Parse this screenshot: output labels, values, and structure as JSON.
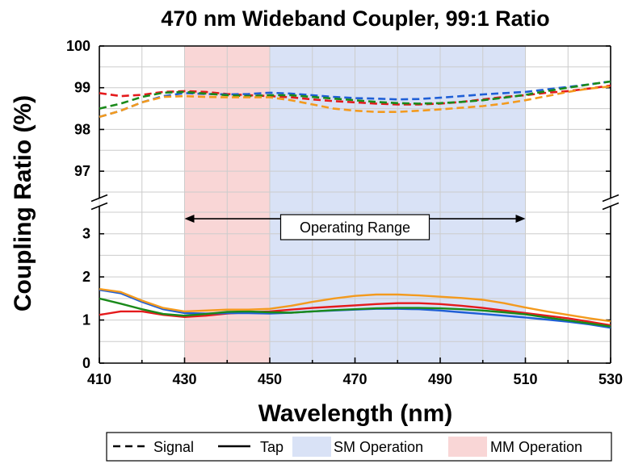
{
  "chart_data": {
    "type": "line",
    "title": "470 nm Wideband Coupler, 99:1 Ratio",
    "xlabel": "Wavelength (nm)",
    "ylabel": "Coupling Ratio (%)",
    "x_ticks": [
      "410",
      "430",
      "450",
      "470",
      "490",
      "510",
      "530"
    ],
    "xlim": [
      410,
      530
    ],
    "upper_panel": {
      "ylim": [
        96.5,
        100
      ],
      "y_ticks": [
        "97",
        "98",
        "99",
        "100"
      ]
    },
    "lower_panel": {
      "ylim": [
        0,
        3.5
      ],
      "y_ticks": [
        "0",
        "1",
        "2",
        "3"
      ]
    },
    "grid": true,
    "bands": [
      {
        "name": "MM Operation",
        "x_range": [
          430,
          450
        ],
        "color": "#f9d6d6"
      },
      {
        "name": "SM Operation",
        "x_range": [
          450,
          510
        ],
        "color": "#d9e2f6"
      }
    ],
    "annotation": {
      "text": "Operating Range",
      "x_range": [
        430,
        510
      ],
      "arrow_y": 3.35
    },
    "legend": {
      "placement": "bottom",
      "items": [
        {
          "label": "Signal",
          "style": "dashed"
        },
        {
          "label": "Tap",
          "style": "solid"
        },
        {
          "label": "SM Operation",
          "style": "band",
          "color": "#d9e2f6"
        },
        {
          "label": "MM Operation",
          "style": "band",
          "color": "#f9d6d6"
        }
      ]
    },
    "x": [
      410,
      415,
      420,
      425,
      430,
      435,
      440,
      445,
      450,
      455,
      460,
      465,
      470,
      475,
      480,
      485,
      490,
      495,
      500,
      505,
      510,
      515,
      520,
      525,
      530
    ],
    "signal_series": [
      {
        "color": "#e41a1c",
        "values": [
          98.87,
          98.8,
          98.83,
          98.9,
          98.92,
          98.9,
          98.85,
          98.82,
          98.8,
          98.77,
          98.72,
          98.68,
          98.65,
          98.62,
          98.6,
          98.6,
          98.62,
          98.66,
          98.72,
          98.78,
          98.82,
          98.88,
          98.92,
          98.98,
          99.05
        ]
      },
      {
        "color": "#1f5fd6",
        "values": [
          98.3,
          98.45,
          98.65,
          98.8,
          98.87,
          98.85,
          98.84,
          98.85,
          98.88,
          98.86,
          98.82,
          98.78,
          98.75,
          98.74,
          98.72,
          98.73,
          98.76,
          98.8,
          98.84,
          98.87,
          98.9,
          98.96,
          99.02,
          99.08,
          99.15
        ]
      },
      {
        "color": "#1a8a1a",
        "values": [
          98.5,
          98.62,
          98.78,
          98.88,
          98.9,
          98.86,
          98.82,
          98.8,
          98.82,
          98.82,
          98.78,
          98.74,
          98.7,
          98.66,
          98.63,
          98.62,
          98.63,
          98.66,
          98.7,
          98.76,
          98.83,
          98.92,
          99.0,
          99.08,
          99.15
        ]
      },
      {
        "color": "#f39a1e",
        "values": [
          98.3,
          98.45,
          98.65,
          98.78,
          98.8,
          98.78,
          98.77,
          98.77,
          98.77,
          98.7,
          98.6,
          98.5,
          98.45,
          98.42,
          98.42,
          98.45,
          98.48,
          98.52,
          98.56,
          98.62,
          98.7,
          98.8,
          98.9,
          98.98,
          99.03
        ]
      }
    ],
    "tap_series": [
      {
        "color": "#e41a1c",
        "values": [
          1.12,
          1.2,
          1.2,
          1.12,
          1.07,
          1.1,
          1.15,
          1.18,
          1.2,
          1.24,
          1.28,
          1.31,
          1.34,
          1.37,
          1.39,
          1.39,
          1.37,
          1.33,
          1.28,
          1.22,
          1.16,
          1.1,
          1.04,
          0.96,
          0.88
        ]
      },
      {
        "color": "#1f5fd6",
        "values": [
          1.7,
          1.62,
          1.42,
          1.25,
          1.16,
          1.15,
          1.16,
          1.16,
          1.15,
          1.17,
          1.2,
          1.22,
          1.24,
          1.26,
          1.26,
          1.25,
          1.22,
          1.18,
          1.14,
          1.1,
          1.06,
          1.01,
          0.96,
          0.9,
          0.82
        ]
      },
      {
        "color": "#1a8a1a",
        "values": [
          1.5,
          1.38,
          1.25,
          1.14,
          1.1,
          1.14,
          1.19,
          1.2,
          1.18,
          1.17,
          1.2,
          1.23,
          1.25,
          1.27,
          1.28,
          1.28,
          1.27,
          1.25,
          1.22,
          1.18,
          1.13,
          1.06,
          0.99,
          0.92,
          0.85
        ]
      },
      {
        "color": "#f39a1e",
        "values": [
          1.72,
          1.65,
          1.45,
          1.28,
          1.2,
          1.22,
          1.24,
          1.24,
          1.26,
          1.33,
          1.42,
          1.5,
          1.56,
          1.59,
          1.59,
          1.57,
          1.54,
          1.51,
          1.47,
          1.39,
          1.29,
          1.2,
          1.12,
          1.04,
          0.97
        ]
      }
    ]
  }
}
